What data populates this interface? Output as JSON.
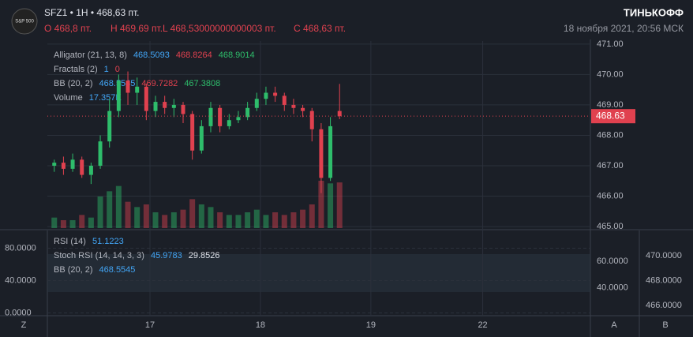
{
  "header": {
    "logo": "S&P 500",
    "symbol": "SFZ1 • 1H • 468,63 пт.",
    "open": "O 468,8 пт.",
    "high": "H 469,69 пт.",
    "low": "L 468,53000000000003 пт.",
    "close": "C 468,63 пт.",
    "brand": "ТИНЬКОФФ",
    "datetime": "18 ноября 2021, 20:56 МСК"
  },
  "legend": [
    [
      "Alligator (21, 13, 8)",
      "468.5093",
      "468.8264",
      "468.9014"
    ],
    [
      "Fractals (2)",
      "1",
      "0"
    ],
    [
      "BB (20, 2)",
      "468.5545",
      "469.7282",
      "467.3808"
    ],
    [
      "Volume",
      "17.357K"
    ]
  ],
  "lower_legend": [
    [
      "RSI (14)",
      "51.1223"
    ],
    [
      "Stoch RSI (14, 14, 3, 3)",
      "45.9783",
      "29.8526"
    ],
    [
      "BB (20, 2)",
      "468.5545"
    ]
  ],
  "lower_pane": {
    "left": {
      "ylim": [
        -1.5,
        100
      ],
      "yticks": [
        {
          "value": 80,
          "label": "80.0000"
        },
        {
          "value": 40,
          "label": "40.0000"
        },
        {
          "value": 0,
          "label": "0.0000"
        }
      ]
    },
    "middle": {
      "ylim": [
        20,
        82
      ],
      "yticks": [
        {
          "value": 60,
          "label": "60.0000"
        },
        {
          "value": 40,
          "label": "40.0000"
        }
      ]
    },
    "right": {
      "ylim": [
        465.3,
        471.9
      ],
      "yticks": [
        {
          "value": 470,
          "label": "470.0000"
        },
        {
          "value": 468,
          "label": "468.0000"
        },
        {
          "value": 466,
          "label": "466.0000"
        }
      ]
    }
  },
  "axis_letters": [
    "Z",
    "A",
    "B"
  ],
  "chart_data": {
    "type": "candlestick",
    "up_color": "#2ebd6b",
    "down_color": "#e0414f",
    "x": [
      1.5,
      3.5,
      5.5,
      7.5,
      9.5,
      11.5,
      13.5,
      15.5,
      17.5,
      19.5,
      21.5,
      23.5,
      25.5,
      27.5,
      29.5,
      31.5,
      33.5,
      35.5,
      37.5,
      39.5,
      41.5,
      43.5,
      45.5,
      47.5,
      49.5,
      51.5,
      53.5,
      55.5,
      57.5,
      59.5,
      61.5,
      63.5
    ],
    "open": [
      467.0,
      467.1,
      466.9,
      467.2,
      466.7,
      467.0,
      467.8,
      468.8,
      469.8,
      469.4,
      469.6,
      468.8,
      469.1,
      468.9,
      469.0,
      468.7,
      467.5,
      468.3,
      468.9,
      468.3,
      468.5,
      468.6,
      468.9,
      469.2,
      469.4,
      469.3,
      469.0,
      468.9,
      468.8,
      468.2,
      466.6,
      468.8
    ],
    "high": [
      467.2,
      467.3,
      467.4,
      467.3,
      467.1,
      468.0,
      469.2,
      470.0,
      470.1,
      469.9,
      469.7,
      469.3,
      469.3,
      469.2,
      469.1,
      468.8,
      468.5,
      469.1,
      469.0,
      468.7,
      468.8,
      469.1,
      469.4,
      469.6,
      469.6,
      469.4,
      469.2,
      469.0,
      468.9,
      468.4,
      468.6,
      469.69
    ],
    "low": [
      466.8,
      466.7,
      466.8,
      466.6,
      466.4,
      466.9,
      467.6,
      468.6,
      469.0,
      469.0,
      468.5,
      468.6,
      468.7,
      468.6,
      468.4,
      467.2,
      467.4,
      468.1,
      468.1,
      468.2,
      468.4,
      468.5,
      468.8,
      469.0,
      469.1,
      468.8,
      468.7,
      468.6,
      467.8,
      466.1,
      466.5,
      468.53
    ],
    "close": [
      467.1,
      466.9,
      467.2,
      466.7,
      467.0,
      467.8,
      468.8,
      469.8,
      469.4,
      469.6,
      468.8,
      469.1,
      468.9,
      469.0,
      468.7,
      467.5,
      468.3,
      468.9,
      468.3,
      468.5,
      468.6,
      468.9,
      469.2,
      469.4,
      469.3,
      469.0,
      468.9,
      468.8,
      468.2,
      466.6,
      468.3,
      468.63
    ],
    "volume": [
      4,
      3,
      3,
      5,
      4,
      12,
      14,
      16,
      10,
      8,
      9,
      6,
      5,
      6,
      7,
      11,
      9,
      8,
      6,
      5,
      5,
      6,
      7,
      5,
      6,
      5,
      6,
      7,
      9,
      18,
      17,
      17.357
    ],
    "last_price": 468.63,
    "xlim": [
      0,
      118
    ],
    "xticks": [
      {
        "value": 22.3,
        "label": "17"
      },
      {
        "value": 46.3,
        "label": "18"
      },
      {
        "value": 70.3,
        "label": "19"
      },
      {
        "value": 94.6,
        "label": "22"
      }
    ],
    "ylim": [
      464.95,
      471.1
    ],
    "yticks": [
      {
        "value": 471,
        "label": "471.00"
      },
      {
        "value": 470,
        "label": "470.00"
      },
      {
        "value": 469,
        "label": "469.00"
      },
      {
        "value": 468,
        "label": "468.00"
      },
      {
        "value": 467,
        "label": "467.00"
      },
      {
        "value": 466,
        "label": "466.00"
      },
      {
        "value": 465,
        "label": "465.00"
      }
    ],
    "grid": true
  }
}
